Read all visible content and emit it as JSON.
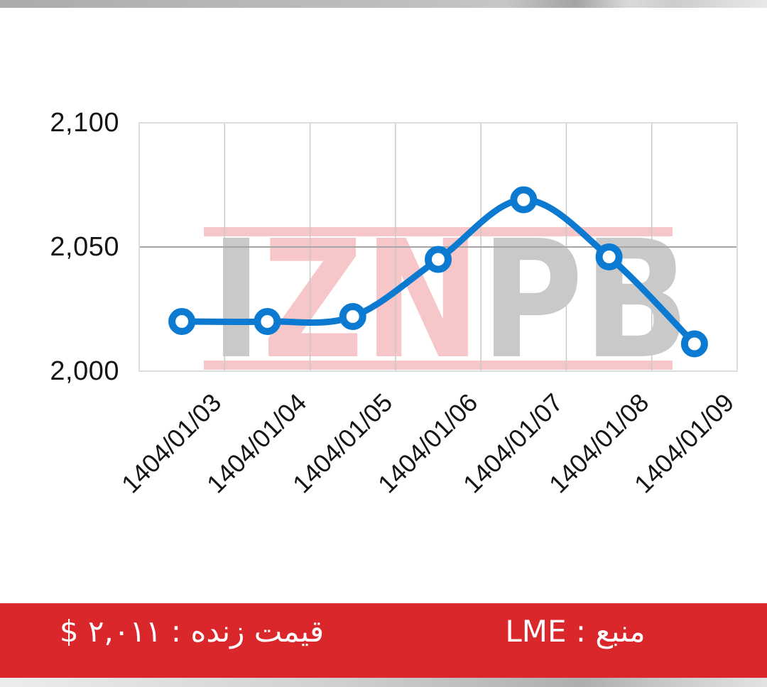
{
  "chart_data": {
    "type": "line",
    "title": "",
    "xlabel": "",
    "ylabel": "",
    "categories": [
      "1404/01/03",
      "1404/01/04",
      "1404/01/05",
      "1404/01/06",
      "1404/01/07",
      "1404/01/08",
      "1404/01/09"
    ],
    "series": [
      {
        "name": "LME price (USD)",
        "values": [
          2020,
          2020,
          2022,
          2045,
          2069,
          2046,
          2011
        ]
      }
    ],
    "ylim": [
      2000,
      2100
    ],
    "yticks": [
      {
        "value": 2100,
        "label": "2,100"
      },
      {
        "value": 2050,
        "label": "2,050"
      },
      {
        "value": 2000,
        "label": "2,000"
      }
    ],
    "grid": true,
    "legend": "none",
    "line_color": "#0d7ad1",
    "marker_style": "open-circle",
    "marker_fill": "#ffffff",
    "axis_border_color": "#dddddd",
    "vgrid_color": "#c9c9c9",
    "hgrid_color": "#a6a6a6",
    "tick_text_color": "#151515"
  },
  "watermark": {
    "text": "IZNPB",
    "letters": [
      {
        "char": "I",
        "color": "#c9c9c9"
      },
      {
        "char": "Z",
        "color": "#f6c6c8"
      },
      {
        "char": "N",
        "color": "#f6c6c8"
      },
      {
        "char": "P",
        "color": "#c9c9c9"
      },
      {
        "char": "B",
        "color": "#c9c9c9"
      }
    ],
    "bar_color": "#f6c6c8"
  },
  "footer": {
    "background": "#da272c",
    "live_price_text": "قیمت زنده : ۲,۰۱۱ $",
    "source_text": "منبع : LME"
  }
}
